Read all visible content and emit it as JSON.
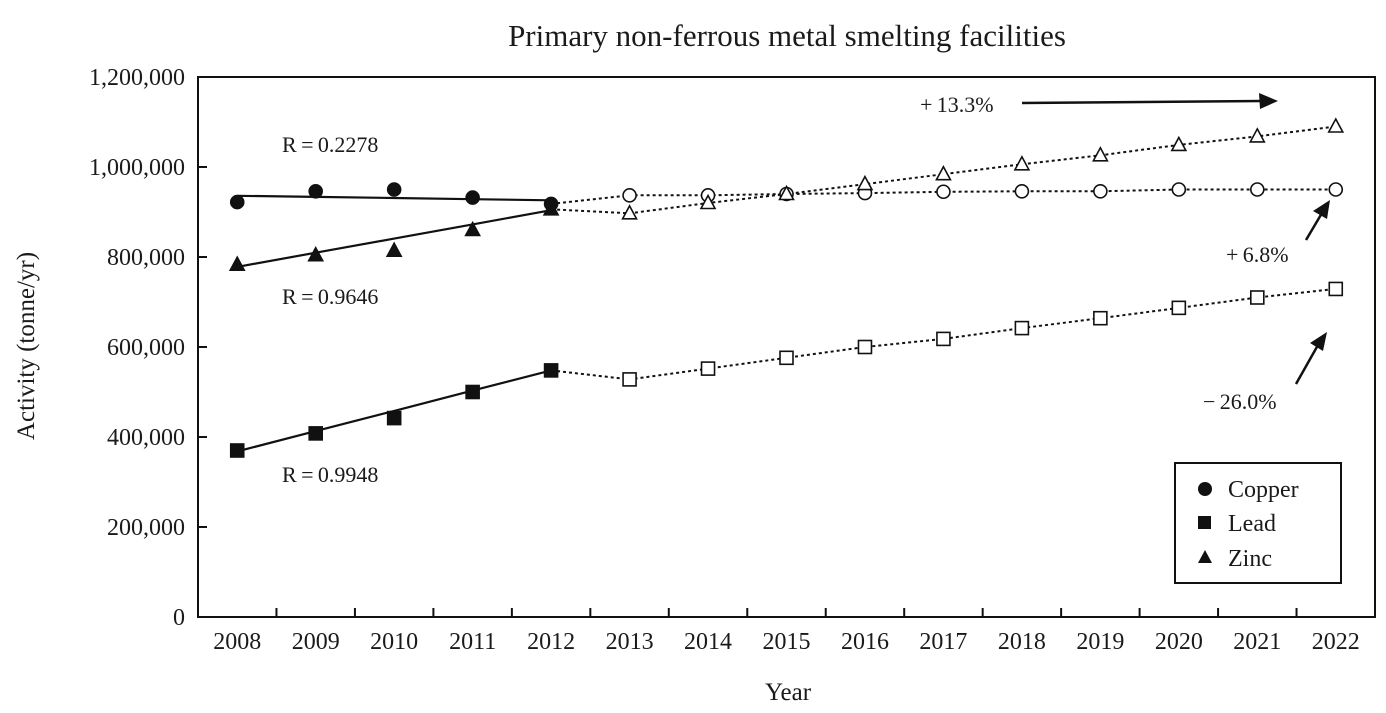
{
  "chart_data": {
    "type": "line",
    "title": "Primary non-ferrous metal smelting facilities",
    "xlabel": "Year",
    "ylabel": "Activity (tonne/yr)",
    "x": [
      2008,
      2009,
      2010,
      2011,
      2012,
      2013,
      2014,
      2015,
      2016,
      2017,
      2018,
      2019,
      2020,
      2021,
      2022
    ],
    "ylim": [
      0,
      1200000
    ],
    "yticks": [
      0,
      200000,
      400000,
      600000,
      800000,
      1000000,
      1200000
    ],
    "ytick_labels": [
      "0",
      "200,000",
      "400,000",
      "600,000",
      "800,000",
      "1,000,000",
      "1,200,000"
    ],
    "legend_position": "bottom-right",
    "series": [
      {
        "name": "Copper",
        "marker": "circle",
        "values": [
          922000,
          946000,
          950000,
          932000,
          918000,
          937000,
          937000,
          940000,
          942000,
          945000,
          946000,
          946000,
          950000,
          950000,
          950000
        ],
        "fit": [
          936000,
          933500,
          931000,
          928500,
          926000
        ]
      },
      {
        "name": "Lead",
        "marker": "square",
        "values": [
          370000,
          408000,
          442000,
          500000,
          548000,
          528000,
          552000,
          576000,
          600000,
          618000,
          642000,
          664000,
          687000,
          710000,
          729000
        ],
        "fit": [
          368000,
          413000,
          458000,
          503000,
          548000
        ]
      },
      {
        "name": "Zinc",
        "marker": "triangle",
        "values": [
          783000,
          804000,
          814000,
          860000,
          906000,
          897000,
          920000,
          940000,
          962000,
          984000,
          1006000,
          1026000,
          1049000,
          1068000,
          1090000
        ],
        "fit": [
          778000,
          809500,
          841000,
          872500,
          904000
        ]
      }
    ],
    "annotations": [
      {
        "text": "R = 0.2278",
        "series": "Copper"
      },
      {
        "text": "R = 0.9646",
        "series": "Zinc"
      },
      {
        "text": "R = 0.9948",
        "series": "Lead"
      },
      {
        "text": "+ 13.3%",
        "series": "Zinc"
      },
      {
        "text": "+ 6.8%",
        "series": "Copper"
      },
      {
        "text": "− 26.0%",
        "series": "Lead"
      }
    ]
  }
}
